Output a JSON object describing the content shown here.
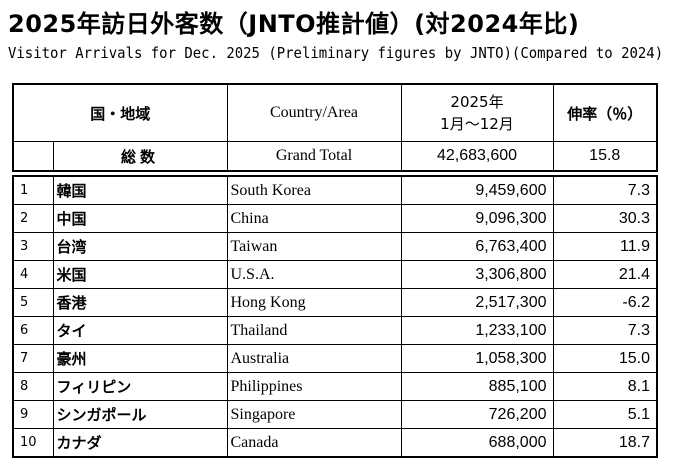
{
  "title": "2025年訪日外客数（JNTO推計値）(対2024年比)",
  "subtitle": "Visitor Arrivals for Dec. 2025 (Preliminary figures by JNTO)(Compared to 2024)",
  "header": {
    "region_ja": "国・地域",
    "region_en": "Country/Area",
    "year_line1": "2025年",
    "year_line2": "1月～12月",
    "rate": "伸率（％）"
  },
  "total": {
    "label_ja": "総数",
    "label_en": "Grand Total",
    "value": "42,683,600",
    "rate": "15.8"
  },
  "rows": [
    {
      "rank": "1",
      "ja": "韓国",
      "en": "South Korea",
      "value": "9,459,600",
      "rate": "7.3"
    },
    {
      "rank": "2",
      "ja": "中国",
      "en": "China",
      "value": "9,096,300",
      "rate": "30.3"
    },
    {
      "rank": "3",
      "ja": "台湾",
      "en": "Taiwan",
      "value": "6,763,400",
      "rate": "11.9"
    },
    {
      "rank": "4",
      "ja": "米国",
      "en": "U.S.A.",
      "value": "3,306,800",
      "rate": "21.4"
    },
    {
      "rank": "5",
      "ja": "香港",
      "en": "Hong Kong",
      "value": "2,517,300",
      "rate": "-6.2"
    },
    {
      "rank": "6",
      "ja": "タイ",
      "en": "Thailand",
      "value": "1,233,100",
      "rate": "7.3"
    },
    {
      "rank": "7",
      "ja": "豪州",
      "en": "Australia",
      "value": "1,058,300",
      "rate": "15.0"
    },
    {
      "rank": "8",
      "ja": "フィリピン",
      "en": "Philippines",
      "value": "885,100",
      "rate": "8.1"
    },
    {
      "rank": "9",
      "ja": "シンガポール",
      "en": "Singapore",
      "value": "726,200",
      "rate": "5.1"
    },
    {
      "rank": "10",
      "ja": "カナダ",
      "en": "Canada",
      "value": "688,000",
      "rate": "18.7"
    }
  ]
}
